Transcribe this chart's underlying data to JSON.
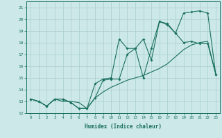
{
  "xlabel": "Humidex (Indice chaleur)",
  "background_color": "#cce8e8",
  "grid_color": "#aacece",
  "line_color": "#1a7060",
  "xlim": [
    -0.5,
    23.5
  ],
  "ylim": [
    12,
    21.5
  ],
  "yticks": [
    12,
    13,
    14,
    15,
    16,
    17,
    18,
    19,
    20,
    21
  ],
  "xticks": [
    0,
    1,
    2,
    3,
    4,
    5,
    6,
    7,
    8,
    9,
    10,
    11,
    12,
    13,
    14,
    15,
    16,
    17,
    18,
    19,
    20,
    21,
    22,
    23
  ],
  "line1_x": [
    0,
    1,
    2,
    3,
    4,
    5,
    6,
    7,
    8,
    9,
    10,
    11,
    12,
    13,
    14,
    15,
    16,
    17,
    18,
    19,
    20,
    21,
    22,
    23
  ],
  "line1_y": [
    13.2,
    13.0,
    12.6,
    13.2,
    13.2,
    12.9,
    12.4,
    12.4,
    13.3,
    14.8,
    14.9,
    14.9,
    17.0,
    17.5,
    18.3,
    16.5,
    19.8,
    19.6,
    18.8,
    18.0,
    18.1,
    17.9,
    17.9,
    15.3
  ],
  "line2_x": [
    0,
    1,
    2,
    3,
    4,
    5,
    6,
    7,
    8,
    9,
    10,
    11,
    12,
    13,
    14,
    15,
    16,
    17,
    18,
    19,
    20,
    21,
    22,
    23
  ],
  "line2_y": [
    13.2,
    13.0,
    12.6,
    13.2,
    13.2,
    12.9,
    12.4,
    12.4,
    14.5,
    14.9,
    15.0,
    18.3,
    17.5,
    17.5,
    15.0,
    17.5,
    19.8,
    19.5,
    18.8,
    20.5,
    20.6,
    20.7,
    20.5,
    15.3
  ],
  "line3_x": [
    0,
    1,
    2,
    3,
    4,
    5,
    6,
    7,
    8,
    9,
    10,
    11,
    12,
    13,
    14,
    15,
    16,
    17,
    18,
    19,
    20,
    21,
    22,
    23
  ],
  "line3_y": [
    13.2,
    13.0,
    12.6,
    13.2,
    13.0,
    13.0,
    12.9,
    12.4,
    13.3,
    13.8,
    14.2,
    14.5,
    14.8,
    15.0,
    15.2,
    15.5,
    15.8,
    16.2,
    16.8,
    17.4,
    17.8,
    18.0,
    18.1,
    15.3
  ]
}
